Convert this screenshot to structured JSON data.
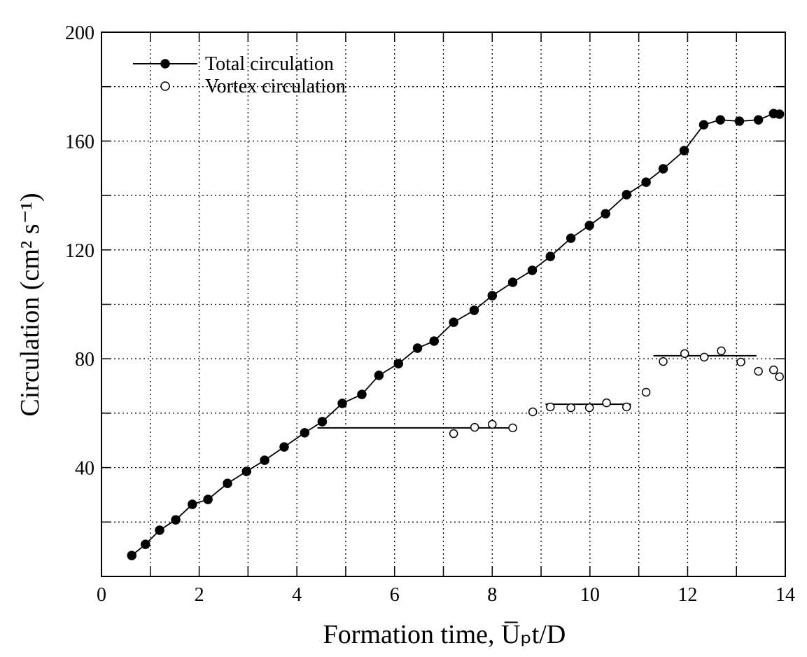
{
  "chart_data": {
    "type": "line",
    "xlabel": "Formation time, U̅ₚt/D",
    "ylabel": "Circulation (cm² s⁻¹)",
    "xlim": [
      0,
      14
    ],
    "ylim": [
      0,
      200
    ],
    "xticks": [
      0,
      2,
      4,
      6,
      8,
      10,
      12,
      14
    ],
    "xminorticks": [
      1,
      3,
      5,
      7,
      9,
      11,
      13
    ],
    "yticks": [
      40,
      80,
      120,
      160,
      200
    ],
    "yminorticks": [
      20,
      60,
      100,
      140,
      180
    ],
    "grid": true,
    "legend": "upper left",
    "series": [
      {
        "name": "Total circulation",
        "color": "#000000",
        "marker": "filled",
        "line": true,
        "x": [
          0.62,
          0.9,
          1.19,
          1.52,
          1.86,
          2.18,
          2.58,
          2.97,
          3.34,
          3.74,
          4.16,
          4.52,
          4.93,
          5.33,
          5.68,
          6.08,
          6.47,
          6.81,
          7.21,
          7.63,
          8.0,
          8.42,
          8.82,
          9.19,
          9.61,
          9.99,
          10.32,
          10.75,
          11.15,
          11.5,
          11.93,
          12.33,
          12.67,
          13.06,
          13.45,
          13.76,
          13.88
        ],
        "values": [
          7.7,
          11.8,
          17,
          20.8,
          26.5,
          28.3,
          34.2,
          38.6,
          42.7,
          47.6,
          52.8,
          56.9,
          63.6,
          66.9,
          73.9,
          78.2,
          83.9,
          86.5,
          93.4,
          97.8,
          103.2,
          108.1,
          112.5,
          117.6,
          124.3,
          129.0,
          133.3,
          140.3,
          144.9,
          149.8,
          156.5,
          166.0,
          167.8,
          167.3,
          167.8,
          170.1,
          169.9
        ]
      },
      {
        "name": "Vortex circulation",
        "color": "#000000",
        "marker": "open",
        "line": false,
        "x": [
          7.21,
          7.64,
          8.0,
          8.42,
          8.83,
          9.19,
          9.61,
          9.99,
          10.34,
          10.75,
          11.15,
          11.5,
          11.94,
          12.34,
          12.69,
          13.09,
          13.45,
          13.76,
          13.88
        ],
        "values": [
          52.5,
          54.8,
          55.9,
          54.6,
          60.5,
          62.3,
          62.0,
          62.0,
          63.8,
          62.3,
          67.7,
          79.0,
          81.9,
          80.6,
          82.9,
          78.8,
          75.4,
          75.9,
          73.4
        ]
      }
    ],
    "reference_lines": [
      {
        "x": [
          4.42,
          8.5
        ],
        "y": 54.6
      },
      {
        "x": [
          9.09,
          10.84
        ],
        "y": 63.3
      },
      {
        "x": [
          11.3,
          13.41
        ],
        "y": 81.1
      }
    ]
  }
}
